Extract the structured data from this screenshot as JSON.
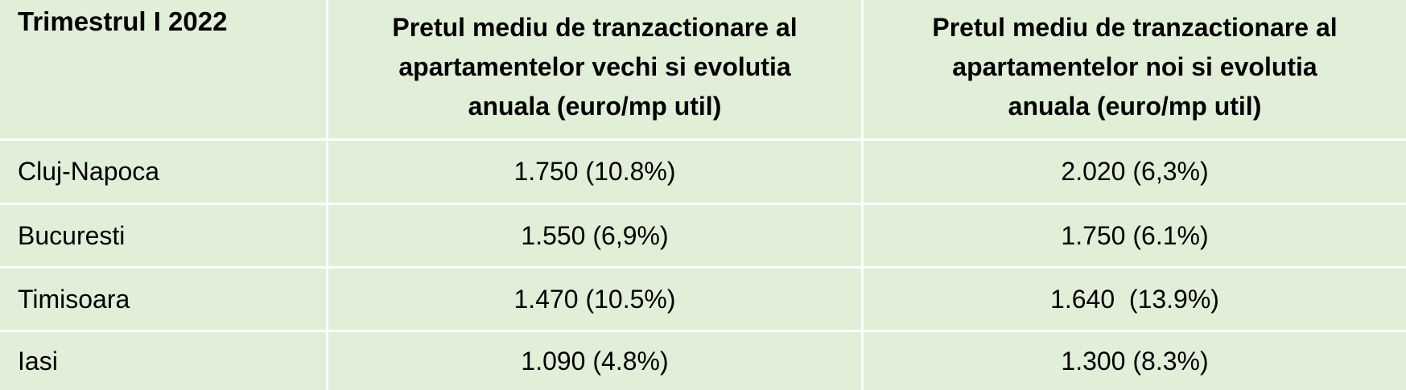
{
  "table": {
    "corner_header": "Trimestrul I 2022",
    "old_header_lines": [
      "Pretul mediu de tranzactionare al",
      "apartamentelor vechi si evolutia",
      "anuala (euro/mp util)"
    ],
    "new_header_lines": [
      "Pretul mediu de tranzactionare al",
      "apartamentelor noi si evolutia",
      "anuala (euro/mp util)"
    ]
  },
  "chart_data": {
    "type": "table",
    "title": "Trimestrul I 2022",
    "columns": [
      "Trimestrul I 2022",
      "Pretul mediu de tranzactionare al apartamentelor vechi si evolutia anuala (euro/mp util)",
      "Pretul mediu de tranzactionare al apartamentelor noi si evolutia anuala (euro/mp util)"
    ],
    "rows": [
      [
        "Cluj-Napoca",
        "1.750 (10.8%)",
        "2.020 (6,3%)"
      ],
      [
        "Bucuresti",
        "1.550 (6,9%)",
        "1.750 (6.1%)"
      ],
      [
        "Timisoara",
        "1.470 (10.5%)",
        "1.640  (13.9%)"
      ],
      [
        "Iasi",
        "1.090 (4.8%)",
        "1.300 (8.3%)"
      ]
    ],
    "numeric": {
      "cities": [
        "Cluj-Napoca",
        "Bucuresti",
        "Timisoara",
        "Iasi"
      ],
      "old_price_eur_per_mp": [
        1750,
        1550,
        1470,
        1090
      ],
      "old_yoy_change_pct": [
        10.8,
        6.9,
        10.5,
        4.8
      ],
      "new_price_eur_per_mp": [
        2020,
        1750,
        1640,
        1300
      ],
      "new_yoy_change_pct": [
        6.3,
        6.1,
        13.9,
        8.3
      ]
    }
  },
  "colors": {
    "cell_background": "#e1eed8",
    "gridline": "#ffffff",
    "text": "#000000"
  }
}
